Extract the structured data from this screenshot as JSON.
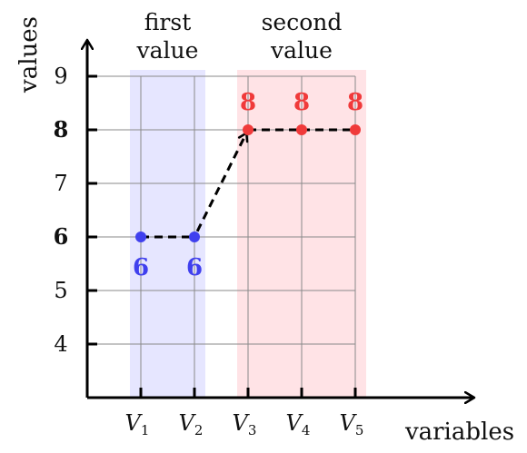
{
  "chart_data": {
    "type": "scatter",
    "xlabel": "variables",
    "ylabel": "values",
    "grid": true,
    "yticks": [
      {
        "label": "4",
        "value": 4,
        "bold": false
      },
      {
        "label": "5",
        "value": 5,
        "bold": false
      },
      {
        "label": "6",
        "value": 6,
        "bold": true
      },
      {
        "label": "7",
        "value": 7,
        "bold": false
      },
      {
        "label": "8",
        "value": 8,
        "bold": true
      },
      {
        "label": "9",
        "value": 9,
        "bold": false
      }
    ],
    "categories": [
      {
        "base": "V",
        "sub": "1"
      },
      {
        "base": "V",
        "sub": "2"
      },
      {
        "base": "V",
        "sub": "3"
      },
      {
        "base": "V",
        "sub": "4"
      },
      {
        "base": "V",
        "sub": "5"
      }
    ],
    "groups": [
      {
        "title_line1": "first",
        "title_line2": "value",
        "indices": [
          0,
          1
        ],
        "fill": "#e6e6ff",
        "color": "#4040ee",
        "value": 6
      },
      {
        "title_line1": "second",
        "title_line2": "value",
        "indices": [
          2,
          3,
          4
        ],
        "fill": "#ffe3e6",
        "color": "#f03a3a",
        "value": 8
      }
    ],
    "points": [
      {
        "x": 1,
        "y": 6,
        "label": "6"
      },
      {
        "x": 2,
        "y": 6,
        "label": "6"
      },
      {
        "x": 3,
        "y": 8,
        "label": "8"
      },
      {
        "x": 4,
        "y": 8,
        "label": "8"
      },
      {
        "x": 5,
        "y": 8,
        "label": "8"
      }
    ],
    "transition": {
      "from": 2,
      "to": 3,
      "style": "dashed-arrow"
    }
  }
}
